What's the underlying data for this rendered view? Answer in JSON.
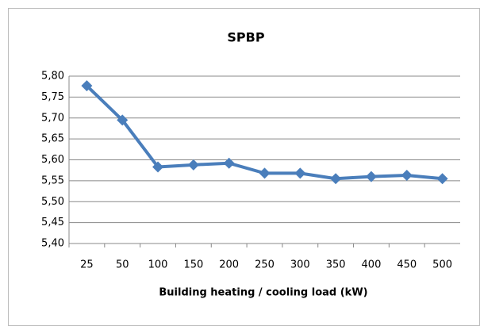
{
  "chart_data": {
    "type": "line",
    "title": "SPBP",
    "x_label": "Building heating / cooling load (kW)",
    "categories": [
      "25",
      "50",
      "100",
      "150",
      "200",
      "250",
      "300",
      "350",
      "400",
      "450",
      "500"
    ],
    "series": [
      {
        "name": "SPBP",
        "color": "#4a7ebb",
        "values": [
          5.777,
          5.695,
          5.583,
          5.588,
          5.592,
          5.568,
          5.568,
          5.555,
          5.56,
          5.563,
          5.555
        ]
      }
    ],
    "ylim": [
      5.4,
      5.8
    ],
    "yticks": [
      {
        "value": 5.4,
        "label": "5,40"
      },
      {
        "value": 5.45,
        "label": "5,45"
      },
      {
        "value": 5.5,
        "label": "5,50"
      },
      {
        "value": 5.55,
        "label": "5,55"
      },
      {
        "value": 5.6,
        "label": "5,60"
      },
      {
        "value": 5.65,
        "label": "5,65"
      },
      {
        "value": 5.7,
        "label": "5,70"
      },
      {
        "value": 5.75,
        "label": "5,75"
      },
      {
        "value": 5.8,
        "label": "5,80"
      }
    ],
    "grid": true
  }
}
